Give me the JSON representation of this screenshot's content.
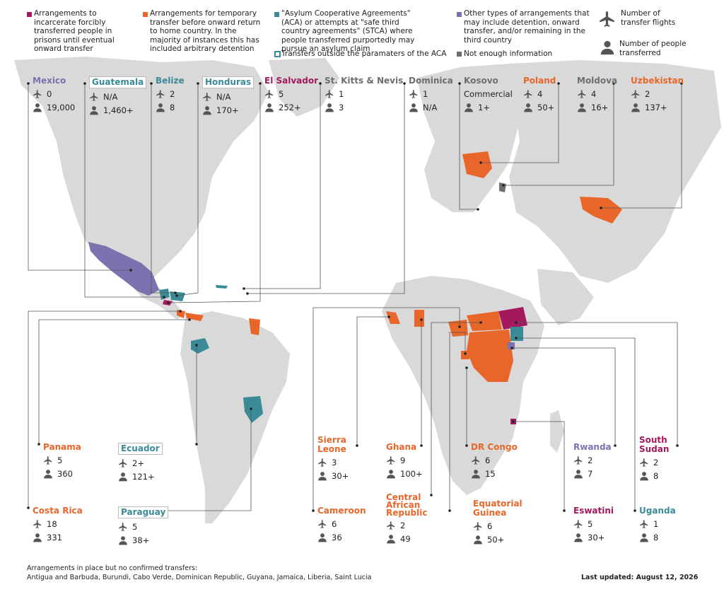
{
  "colors": {
    "incarcerate": "#a3195b",
    "temporary": "#e8662a",
    "aca": "#3a8a98",
    "other": "#7b72b0",
    "notenough": "#6e6e6e",
    "land": "#d9d9d9",
    "ocean": "#ffffff"
  },
  "legend": {
    "incarcerate": "Arrangements to incarcerate forcibly transferred people in prisons until eventual onward transfer",
    "temporary": "Arrangements for temporary transfer before onward return to home country. In the majority of instances this has included arbitrary detention",
    "aca": "\"Asylum Cooperative Agreements\" (ACA) or attempts at \"safe third country agreements\" (STCA) where people transferred purportedly may pursue an asylum claim",
    "aca_outside": "Transfers outside the paramaters of the ACA",
    "other": "Other types of arrangements that may include detention, onward transfer, and/or remaining in the third country",
    "notenough": "Not enough information",
    "flights": "Number of transfer flights",
    "people": "Number of people transferred"
  },
  "countries": [
    {
      "name": "Mexico",
      "cat": "other",
      "flights": "0",
      "people": "19,000"
    },
    {
      "name": "Guatemala",
      "cat": "aca",
      "boxed": true,
      "flights": "N/A",
      "people": "1,460+"
    },
    {
      "name": "Belize",
      "cat": "aca",
      "flights": "2",
      "people": "8"
    },
    {
      "name": "Honduras",
      "cat": "aca",
      "boxed": true,
      "flights": "N/A",
      "people": "170+"
    },
    {
      "name": "El Salvador",
      "cat": "incarcerate",
      "flights": "5",
      "people": "252+"
    },
    {
      "name": "St. Kitts & Nevis",
      "cat": "notenough",
      "flights": "1",
      "people": "3"
    },
    {
      "name": "Dominica",
      "cat": "notenough",
      "flights": "1",
      "people": "N/A"
    },
    {
      "name": "Kosovo",
      "cat": "notenough",
      "flights": "Commercial",
      "people": "1+"
    },
    {
      "name": "Poland",
      "cat": "temporary",
      "flights": "4",
      "people": "50+"
    },
    {
      "name": "Moldova",
      "cat": "notenough",
      "flights": "4",
      "people": "16+"
    },
    {
      "name": "Uzbekistan",
      "cat": "temporary",
      "flights": "2",
      "people": "137+"
    },
    {
      "name": "Panama",
      "cat": "temporary",
      "flights": "5",
      "people": "360"
    },
    {
      "name": "Ecuador",
      "cat": "aca",
      "boxed": true,
      "flights": "2+",
      "people": "121+"
    },
    {
      "name": "Costa Rica",
      "cat": "temporary",
      "flights": "18",
      "people": "331"
    },
    {
      "name": "Paraguay",
      "cat": "aca",
      "boxed": true,
      "flights": "5",
      "people": "38+"
    },
    {
      "name": "Sierra Leone",
      "cat": "temporary",
      "flights": "3",
      "people": "30+"
    },
    {
      "name": "Ghana",
      "cat": "temporary",
      "flights": "9",
      "people": "100+"
    },
    {
      "name": "DR Congo",
      "cat": "temporary",
      "flights": "6",
      "people": "15"
    },
    {
      "name": "Rwanda",
      "cat": "other",
      "flights": "2",
      "people": "7"
    },
    {
      "name": "South Sudan",
      "cat": "incarcerate",
      "flights": "2",
      "people": "8"
    },
    {
      "name": "Cameroon",
      "cat": "temporary",
      "flights": "6",
      "people": "36"
    },
    {
      "name": "Central African Republic",
      "cat": "temporary",
      "flights": "2",
      "people": "49"
    },
    {
      "name": "Equatorial Guinea",
      "cat": "temporary",
      "flights": "6",
      "people": "50+"
    },
    {
      "name": "Eswatini",
      "cat": "incarcerate",
      "flights": "5",
      "people": "30+"
    },
    {
      "name": "Uganda",
      "cat": "aca",
      "flights": "1",
      "people": "8"
    }
  ],
  "footer": {
    "note_title": "Arrangements in place but no confirmed transfers:",
    "note_list": "Antigua and Barbuda, Burundi, Cabo Verde, Dominican Republic, Guyana, Jamaica, Liberia, Saint Lucia",
    "updated": "Last updated: August 12, 2026"
  }
}
